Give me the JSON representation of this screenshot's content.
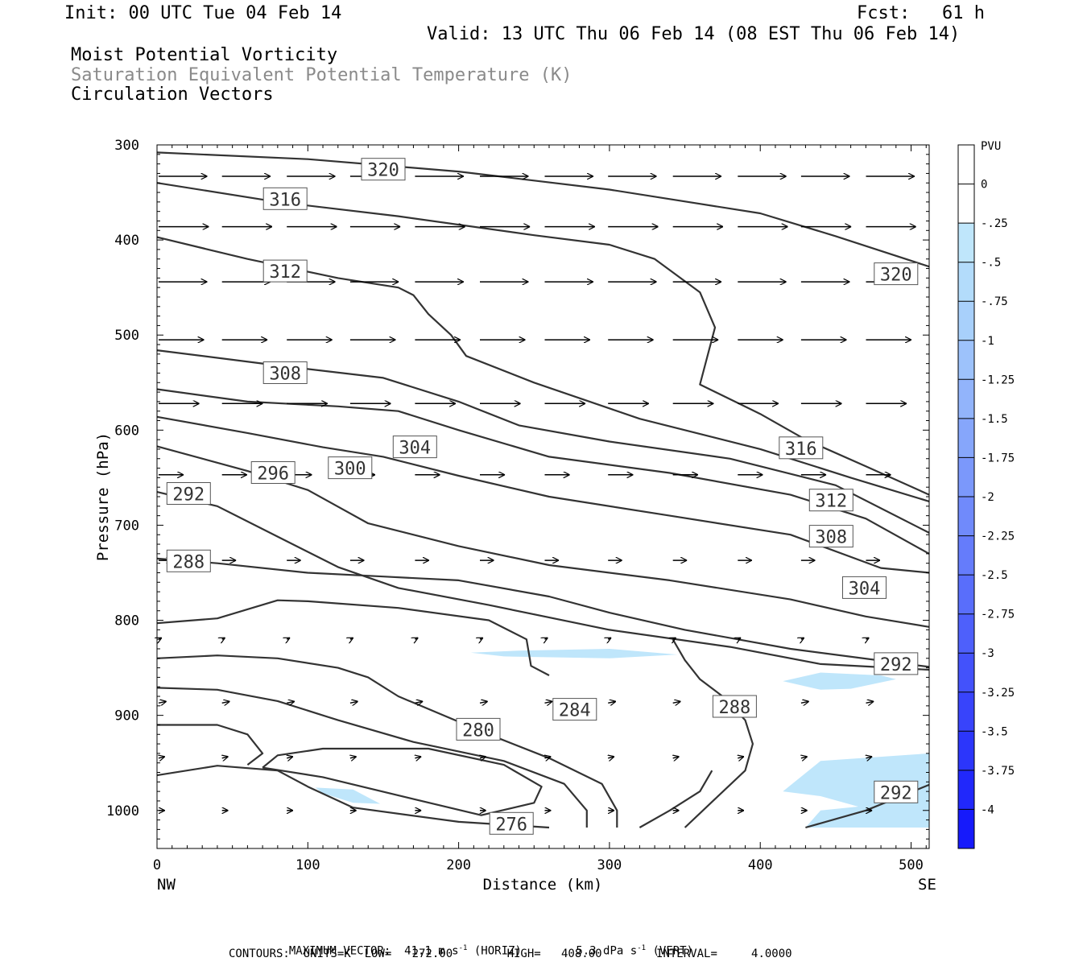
{
  "header": {
    "init": "Init: 00 UTC Tue 04 Feb 14",
    "fcst": "Fcst:   61 h",
    "valid": "Valid: 13 UTC Thu 06 Feb 14 (08 EST Thu 06 Feb 14)",
    "field1": "Moist Potential Vorticity",
    "field2": "Saturation Equivalent Potential Temperature (K)",
    "field3": "Circulation Vectors"
  },
  "footer": {
    "max_vector_label": "MAXIMUM VECTOR:",
    "horiz_value": "41.1 m s",
    "horiz_unit": "(HORIZ)",
    "vert_value": "5.3 dPa s",
    "vert_unit": "(VERT)",
    "exponent": "-1",
    "contours_line": "CONTOURS:  UNITS=K  LOW=   272.00        HIGH=   408.00        INTERVAL=     4.0000"
  },
  "colors": {
    "contour": "#333333",
    "pv_fill": "#bfe6fb",
    "colorbar": [
      "#ffffff",
      "#ffffff",
      "#bfe6fb",
      "#b3dcfb",
      "#a8d0fb",
      "#9dc2fb",
      "#92b4fb",
      "#86a6fb",
      "#7b98fb",
      "#708afb",
      "#657cfb",
      "#596efb",
      "#4e60fb",
      "#4352fb",
      "#3844fb",
      "#2c36fb",
      "#2128fb",
      "#161afb"
    ]
  },
  "chart_data": {
    "type": "cross-section",
    "xlabel": "Distance (km)",
    "ylabel": "Pressure (hPa)",
    "xlim": [
      0,
      512
    ],
    "ylim": [
      1040,
      300
    ],
    "x_ticks": [
      "0",
      "100",
      "200",
      "300",
      "400",
      "500"
    ],
    "y_ticks": [
      "300",
      "400",
      "500",
      "600",
      "700",
      "800",
      "900",
      "1000"
    ],
    "x_end_labels": {
      "left": "NW",
      "right": "SE"
    },
    "colorbar_title": "PVU",
    "colorbar_labels": [
      "0",
      "-.25",
      "-.5",
      "-.75",
      "-1",
      "-1.25",
      "-1.5",
      "-1.75",
      "-2",
      "-2.25",
      "-2.5",
      "-2.75",
      "-3",
      "-3.25",
      "-3.5",
      "-3.75",
      "-4"
    ],
    "contour_interval": 4,
    "contours": [
      {
        "value": 320,
        "points": [
          [
            0,
            308
          ],
          [
            100,
            315
          ],
          [
            200,
            328
          ],
          [
            300,
            347
          ],
          [
            400,
            372
          ],
          [
            450,
            396
          ],
          [
            512,
            428
          ]
        ]
      },
      {
        "value": 316,
        "points": [
          [
            0,
            340
          ],
          [
            80,
            360
          ],
          [
            160,
            375
          ],
          [
            250,
            395
          ],
          [
            300,
            405
          ],
          [
            330,
            420
          ],
          [
            360,
            455
          ],
          [
            370,
            492
          ],
          [
            360,
            552
          ],
          [
            400,
            583
          ],
          [
            430,
            610
          ],
          [
            470,
            638
          ],
          [
            512,
            668
          ]
        ]
      },
      {
        "value": 312,
        "points": [
          [
            0,
            397
          ],
          [
            60,
            420
          ],
          [
            120,
            440
          ],
          [
            160,
            450
          ],
          [
            170,
            458
          ],
          [
            180,
            478
          ],
          [
            195,
            500
          ],
          [
            205,
            522
          ],
          [
            250,
            550
          ],
          [
            320,
            588
          ],
          [
            400,
            620
          ],
          [
            460,
            650
          ],
          [
            512,
            675
          ]
        ]
      },
      {
        "value": 308,
        "points": [
          [
            0,
            516
          ],
          [
            80,
            532
          ],
          [
            150,
            545
          ],
          [
            200,
            570
          ],
          [
            240,
            595
          ],
          [
            300,
            612
          ],
          [
            380,
            630
          ],
          [
            450,
            658
          ],
          [
            512,
            708
          ]
        ]
      },
      {
        "value": 304,
        "points": [
          [
            0,
            557
          ],
          [
            60,
            570
          ],
          [
            120,
            575
          ],
          [
            160,
            580
          ],
          [
            200,
            600
          ],
          [
            260,
            628
          ],
          [
            340,
            645
          ],
          [
            420,
            668
          ],
          [
            470,
            693
          ],
          [
            512,
            730
          ]
        ]
      },
      {
        "value": 300,
        "points": [
          [
            0,
            586
          ],
          [
            60,
            603
          ],
          [
            110,
            618
          ],
          [
            150,
            628
          ],
          [
            200,
            648
          ],
          [
            260,
            670
          ],
          [
            340,
            690
          ],
          [
            420,
            710
          ],
          [
            480,
            745
          ],
          [
            512,
            750
          ]
        ]
      },
      {
        "value": 296,
        "points": [
          [
            0,
            617
          ],
          [
            60,
            643
          ],
          [
            100,
            663
          ],
          [
            140,
            698
          ],
          [
            200,
            722
          ],
          [
            260,
            742
          ],
          [
            340,
            758
          ],
          [
            420,
            778
          ],
          [
            470,
            796
          ],
          [
            512,
            807
          ]
        ]
      },
      {
        "value": 292,
        "points": [
          [
            0,
            665
          ],
          [
            40,
            680
          ],
          [
            80,
            712
          ],
          [
            120,
            744
          ],
          [
            160,
            766
          ],
          [
            220,
            784
          ],
          [
            300,
            810
          ],
          [
            380,
            828
          ],
          [
            440,
            846
          ],
          [
            512,
            852
          ]
        ]
      },
      {
        "value": 288,
        "points": [
          [
            0,
            735
          ],
          [
            40,
            740
          ],
          [
            100,
            750
          ],
          [
            150,
            754
          ],
          [
            200,
            758
          ],
          [
            260,
            775
          ],
          [
            300,
            792
          ],
          [
            350,
            810
          ],
          [
            420,
            830
          ],
          [
            512,
            849
          ]
        ]
      },
      {
        "value": 284,
        "points": [
          [
            0,
            803
          ],
          [
            40,
            798
          ],
          [
            80,
            779
          ],
          [
            100,
            780
          ],
          [
            160,
            787
          ],
          [
            220,
            800
          ],
          [
            245,
            820
          ],
          [
            248,
            848
          ],
          [
            260,
            858
          ]
        ]
      },
      {
        "value": 284,
        "points": [
          [
            0,
            840
          ],
          [
            40,
            837
          ],
          [
            80,
            840
          ],
          [
            120,
            850
          ],
          [
            140,
            860
          ],
          [
            160,
            880
          ],
          [
            220,
            920
          ],
          [
            260,
            945
          ],
          [
            295,
            972
          ],
          [
            305,
            1000
          ],
          [
            305,
            1018
          ]
        ]
      },
      {
        "value": 288,
        "points": [
          [
            342,
            820
          ],
          [
            350,
            842
          ],
          [
            360,
            862
          ],
          [
            375,
            880
          ],
          [
            390,
            905
          ],
          [
            395,
            930
          ],
          [
            390,
            958
          ],
          [
            370,
            988
          ],
          [
            350,
            1018
          ]
        ]
      },
      {
        "value": 280,
        "points": [
          [
            0,
            871
          ],
          [
            40,
            873
          ],
          [
            80,
            885
          ],
          [
            120,
            905
          ],
          [
            170,
            928
          ],
          [
            230,
            948
          ],
          [
            270,
            972
          ],
          [
            285,
            1000
          ],
          [
            285,
            1018
          ]
        ]
      },
      {
        "value": 280,
        "points": [
          [
            0,
            910
          ],
          [
            40,
            910
          ],
          [
            60,
            920
          ],
          [
            70,
            940
          ],
          [
            60,
            952
          ]
        ]
      },
      {
        "value": 276,
        "points": [
          [
            0,
            963
          ],
          [
            40,
            953
          ],
          [
            80,
            958
          ],
          [
            100,
            975
          ],
          [
            130,
            997
          ],
          [
            200,
            1012
          ],
          [
            260,
            1018
          ]
        ]
      },
      {
        "value": 276,
        "points": [
          [
            70,
            955
          ],
          [
            110,
            965
          ],
          [
            170,
            988
          ],
          [
            215,
            1005
          ],
          [
            250,
            992
          ],
          [
            255,
            975
          ],
          [
            230,
            952
          ],
          [
            180,
            935
          ],
          [
            110,
            935
          ],
          [
            80,
            942
          ],
          [
            70,
            955
          ]
        ]
      },
      {
        "value": 292,
        "points": [
          [
            430,
            1018
          ],
          [
            470,
            1000
          ],
          [
            512,
            973
          ]
        ]
      },
      {
        "value": 288,
        "points": [
          [
            320,
            1018
          ],
          [
            340,
            1000
          ],
          [
            360,
            980
          ],
          [
            368,
            958
          ]
        ]
      }
    ],
    "contour_labels": [
      {
        "text": "320",
        "x": 150,
        "p": 326
      },
      {
        "text": "316",
        "x": 85,
        "p": 357
      },
      {
        "text": "312",
        "x": 85,
        "p": 433
      },
      {
        "text": "308",
        "x": 85,
        "p": 540
      },
      {
        "text": "304",
        "x": 171,
        "p": 618
      },
      {
        "text": "300",
        "x": 128,
        "p": 640
      },
      {
        "text": "296",
        "x": 77,
        "p": 645
      },
      {
        "text": "292",
        "x": 21,
        "p": 667
      },
      {
        "text": "288",
        "x": 21,
        "p": 738
      },
      {
        "text": "280",
        "x": 213,
        "p": 915
      },
      {
        "text": "284",
        "x": 277,
        "p": 894
      },
      {
        "text": "288",
        "x": 383,
        "p": 891
      },
      {
        "text": "316",
        "x": 427,
        "p": 619
      },
      {
        "text": "312",
        "x": 447,
        "p": 674
      },
      {
        "text": "308",
        "x": 447,
        "p": 712
      },
      {
        "text": "304",
        "x": 469,
        "p": 766
      },
      {
        "text": "292",
        "x": 490,
        "p": 846
      },
      {
        "text": "320",
        "x": 490,
        "p": 436
      },
      {
        "text": "292",
        "x": 490,
        "p": 981
      },
      {
        "text": "276",
        "x": 235,
        "p": 1014
      }
    ],
    "pv_regions": [
      {
        "level": -0.25,
        "points": [
          [
            208,
            834
          ],
          [
            240,
            832
          ],
          [
            300,
            830
          ],
          [
            345,
            836
          ],
          [
            300,
            840
          ],
          [
            230,
            838
          ],
          [
            208,
            834
          ]
        ]
      },
      {
        "level": -0.25,
        "points": [
          [
            415,
            864
          ],
          [
            440,
            855
          ],
          [
            480,
            858
          ],
          [
            490,
            862
          ],
          [
            460,
            872
          ],
          [
            440,
            873
          ],
          [
            415,
            864
          ]
        ]
      },
      {
        "level": -0.25,
        "points": [
          [
            105,
            976
          ],
          [
            130,
            978
          ],
          [
            148,
            993
          ],
          [
            130,
            992
          ],
          [
            110,
            982
          ],
          [
            105,
            976
          ]
        ]
      },
      {
        "level": -0.25,
        "points": [
          [
            415,
            980
          ],
          [
            440,
            948
          ],
          [
            512,
            940
          ],
          [
            512,
            1018
          ],
          [
            430,
            1018
          ],
          [
            440,
            1000
          ],
          [
            465,
            996
          ],
          [
            440,
            985
          ],
          [
            415,
            980
          ]
        ]
      }
    ],
    "vector_max": {
      "horiz": 41.1,
      "vert": 5.3
    },
    "vectors": [
      {
        "p": 333,
        "xs": [
          0,
          42,
          85,
          127,
          170,
          213,
          256,
          298,
          341,
          384,
          426,
          469
        ],
        "u": 31,
        "v": 0
      },
      {
        "p": 386,
        "xs": [
          0,
          42,
          85,
          127,
          170,
          213,
          256,
          298,
          341,
          384,
          426,
          469
        ],
        "u": 32,
        "v": 0
      },
      {
        "p": 444,
        "xs": [
          0,
          42,
          85,
          127,
          170,
          213,
          256,
          298,
          341,
          384,
          426,
          469
        ],
        "u": 31,
        "v": 0
      },
      {
        "p": 505,
        "xs": [
          0,
          42,
          85,
          127,
          170,
          213,
          256,
          298,
          341,
          384,
          426,
          469
        ],
        "u": 29,
        "v": 0
      },
      {
        "p": 572,
        "xs": [
          0,
          42,
          85,
          127,
          170,
          213,
          256,
          298,
          341,
          384,
          426,
          469
        ],
        "u": 26,
        "v": 0
      },
      {
        "p": 647,
        "xs": [
          0,
          42,
          85,
          127,
          170,
          213,
          256,
          298,
          341,
          384,
          426,
          469
        ],
        "u": 16,
        "v": 0
      },
      {
        "p": 737,
        "xs": [
          0,
          42,
          85,
          127,
          170,
          213,
          256,
          298,
          341,
          384,
          426,
          469
        ],
        "u": 9,
        "v": 0
      },
      {
        "p": 820,
        "xs": [
          0,
          42,
          85,
          127,
          170,
          213,
          256,
          298,
          341,
          384,
          426,
          469
        ],
        "u": 2,
        "v": 1
      },
      {
        "p": 887,
        "xs": [
          0,
          42,
          85,
          127,
          170,
          213,
          256,
          298,
          341,
          384,
          426,
          469
        ],
        "u": 5,
        "v": 1
      },
      {
        "p": 945,
        "xs": [
          0,
          42,
          85,
          127,
          170,
          213,
          256,
          298,
          341,
          384,
          426,
          469
        ],
        "u": 4,
        "v": 1
      },
      {
        "p": 1000,
        "xs": [
          0,
          42,
          85,
          127,
          170,
          213,
          256,
          298,
          341,
          384,
          426,
          469
        ],
        "u": 4,
        "v": 0
      }
    ]
  }
}
